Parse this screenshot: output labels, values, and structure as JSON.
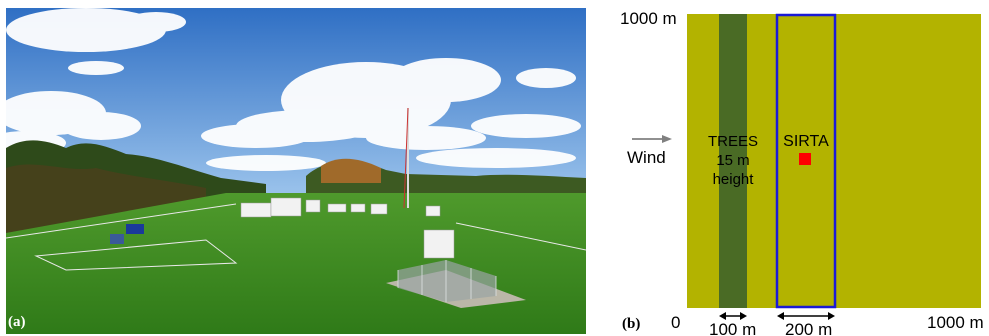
{
  "panel_a": {
    "tag": "(a)"
  },
  "panel_b": {
    "tag": "(b)",
    "top_left_label": "1000 m",
    "origin_label": "0",
    "right_bottom_label": "1000 m",
    "trees_width_label": "100 m",
    "sirta_width_label": "200 m",
    "wind_label": "Wind",
    "trees_label_line1": "TREES",
    "trees_label_line2": "15 m",
    "trees_label_line3": "height",
    "sirta_label": "SIRTA",
    "colors": {
      "field": "#b3b300",
      "trees": "#4a6b25",
      "sirta_box": "#1a1ad6",
      "sirta_marker": "#ff0000",
      "wind_arrow": "#808080"
    }
  }
}
